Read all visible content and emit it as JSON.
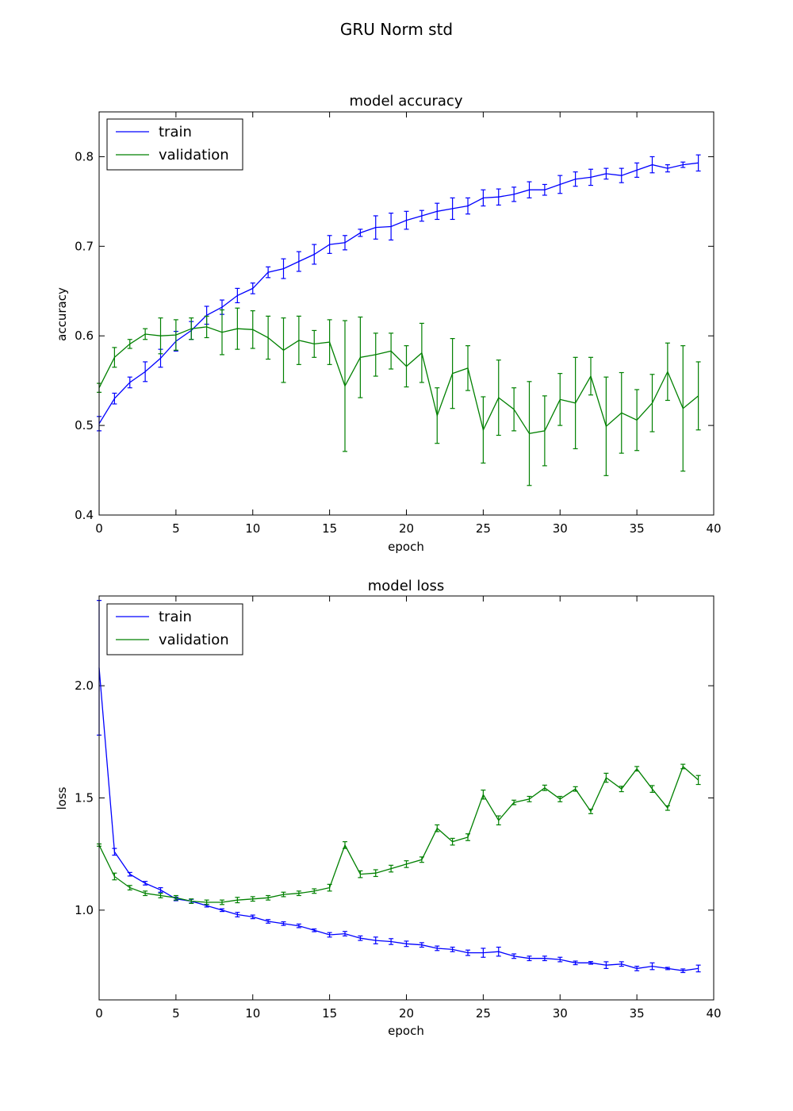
{
  "figure": {
    "suptitle": "GRU Norm std"
  },
  "colors": {
    "train": "#0000ff",
    "validation": "#008000",
    "frame": "#000000",
    "background": "#ffffff"
  },
  "chart_data": [
    {
      "type": "line",
      "title": "model accuracy",
      "xlabel": "epoch",
      "ylabel": "accuracy",
      "xlim": [
        0,
        40
      ],
      "ylim": [
        0.4,
        0.85
      ],
      "xticks": [
        0,
        5,
        10,
        15,
        20,
        25,
        30,
        35,
        40
      ],
      "yticks": [
        0.4,
        0.5,
        0.6,
        0.7,
        0.8
      ],
      "ytick_labels": [
        "0.4",
        "0.5",
        "0.6",
        "0.7",
        "0.8"
      ],
      "legend": {
        "location": "upper left",
        "entries": [
          "train",
          "validation"
        ]
      },
      "x": [
        0,
        1,
        2,
        3,
        4,
        5,
        6,
        7,
        8,
        9,
        10,
        11,
        12,
        13,
        14,
        15,
        16,
        17,
        18,
        19,
        20,
        21,
        22,
        23,
        24,
        25,
        26,
        27,
        28,
        29,
        30,
        31,
        32,
        33,
        34,
        35,
        36,
        37,
        38,
        39
      ],
      "series": [
        {
          "name": "train",
          "color": "#0000ff",
          "values": [
            0.502,
            0.53,
            0.548,
            0.56,
            0.575,
            0.594,
            0.606,
            0.623,
            0.632,
            0.645,
            0.653,
            0.671,
            0.675,
            0.683,
            0.691,
            0.702,
            0.704,
            0.715,
            0.721,
            0.722,
            0.729,
            0.734,
            0.739,
            0.742,
            0.745,
            0.754,
            0.755,
            0.758,
            0.763,
            0.763,
            0.769,
            0.775,
            0.777,
            0.781,
            0.779,
            0.785,
            0.791,
            0.787,
            0.791,
            0.793
          ],
          "errors": [
            0.008,
            0.006,
            0.006,
            0.011,
            0.01,
            0.011,
            0.01,
            0.01,
            0.008,
            0.008,
            0.006,
            0.006,
            0.011,
            0.011,
            0.011,
            0.01,
            0.008,
            0.004,
            0.013,
            0.015,
            0.01,
            0.006,
            0.009,
            0.012,
            0.009,
            0.009,
            0.009,
            0.008,
            0.009,
            0.006,
            0.01,
            0.008,
            0.009,
            0.006,
            0.008,
            0.008,
            0.009,
            0.004,
            0.003,
            0.009
          ]
        },
        {
          "name": "validation",
          "color": "#008000",
          "values": [
            0.542,
            0.576,
            0.591,
            0.602,
            0.6,
            0.601,
            0.608,
            0.61,
            0.604,
            0.608,
            0.607,
            0.598,
            0.584,
            0.595,
            0.591,
            0.593,
            0.544,
            0.576,
            0.579,
            0.583,
            0.566,
            0.581,
            0.511,
            0.558,
            0.564,
            0.495,
            0.531,
            0.518,
            0.491,
            0.494,
            0.529,
            0.525,
            0.555,
            0.499,
            0.514,
            0.506,
            0.525,
            0.56,
            0.519,
            0.533
          ],
          "errors": [
            0.005,
            0.011,
            0.005,
            0.006,
            0.02,
            0.017,
            0.012,
            0.012,
            0.025,
            0.023,
            0.021,
            0.024,
            0.036,
            0.027,
            0.015,
            0.025,
            0.073,
            0.045,
            0.024,
            0.02,
            0.023,
            0.033,
            0.031,
            0.039,
            0.025,
            0.037,
            0.042,
            0.024,
            0.058,
            0.039,
            0.029,
            0.051,
            0.021,
            0.055,
            0.045,
            0.034,
            0.032,
            0.032,
            0.07,
            0.038
          ]
        }
      ]
    },
    {
      "type": "line",
      "title": "model loss",
      "xlabel": "epoch",
      "ylabel": "loss",
      "xlim": [
        0,
        40
      ],
      "ylim": [
        0.6,
        2.4
      ],
      "xticks": [
        0,
        5,
        10,
        15,
        20,
        25,
        30,
        35,
        40
      ],
      "yticks": [
        1.0,
        1.5,
        2.0
      ],
      "ytick_labels": [
        "1.0",
        "1.5",
        "2.0"
      ],
      "legend": {
        "location": "upper left",
        "entries": [
          "train",
          "validation"
        ]
      },
      "x": [
        0,
        1,
        2,
        3,
        4,
        5,
        6,
        7,
        8,
        9,
        10,
        11,
        12,
        13,
        14,
        15,
        16,
        17,
        18,
        19,
        20,
        21,
        22,
        23,
        24,
        25,
        26,
        27,
        28,
        29,
        30,
        31,
        32,
        33,
        34,
        35,
        36,
        37,
        38,
        39
      ],
      "series": [
        {
          "name": "train",
          "color": "#0000ff",
          "values": [
            2.08,
            1.26,
            1.16,
            1.12,
            1.09,
            1.05,
            1.04,
            1.02,
            1.0,
            0.98,
            0.97,
            0.95,
            0.94,
            0.93,
            0.91,
            0.89,
            0.895,
            0.875,
            0.865,
            0.86,
            0.85,
            0.845,
            0.83,
            0.825,
            0.81,
            0.81,
            0.815,
            0.795,
            0.785,
            0.785,
            0.78,
            0.765,
            0.765,
            0.755,
            0.76,
            0.74,
            0.75,
            0.74,
            0.73,
            0.74
          ],
          "errors": [
            0.3,
            0.015,
            0.008,
            0.008,
            0.01,
            0.008,
            0.008,
            0.006,
            0.006,
            0.01,
            0.008,
            0.008,
            0.008,
            0.008,
            0.006,
            0.01,
            0.01,
            0.01,
            0.015,
            0.013,
            0.012,
            0.01,
            0.01,
            0.01,
            0.012,
            0.02,
            0.02,
            0.01,
            0.01,
            0.01,
            0.01,
            0.008,
            0.006,
            0.015,
            0.01,
            0.01,
            0.015,
            0.005,
            0.008,
            0.015
          ]
        },
        {
          "name": "validation",
          "color": "#008000",
          "values": [
            1.29,
            1.15,
            1.1,
            1.075,
            1.065,
            1.055,
            1.04,
            1.035,
            1.035,
            1.045,
            1.05,
            1.055,
            1.07,
            1.075,
            1.085,
            1.1,
            1.29,
            1.16,
            1.165,
            1.185,
            1.205,
            1.225,
            1.365,
            1.305,
            1.325,
            1.515,
            1.4,
            1.48,
            1.495,
            1.545,
            1.495,
            1.54,
            1.44,
            1.59,
            1.54,
            1.63,
            1.54,
            1.455,
            1.64,
            1.58
          ],
          "errors": [
            0.005,
            0.015,
            0.01,
            0.01,
            0.01,
            0.01,
            0.01,
            0.01,
            0.01,
            0.012,
            0.01,
            0.01,
            0.01,
            0.01,
            0.01,
            0.015,
            0.015,
            0.015,
            0.015,
            0.015,
            0.015,
            0.012,
            0.015,
            0.015,
            0.015,
            0.02,
            0.02,
            0.01,
            0.012,
            0.012,
            0.012,
            0.01,
            0.01,
            0.02,
            0.012,
            0.01,
            0.015,
            0.01,
            0.01,
            0.02
          ]
        }
      ]
    }
  ]
}
